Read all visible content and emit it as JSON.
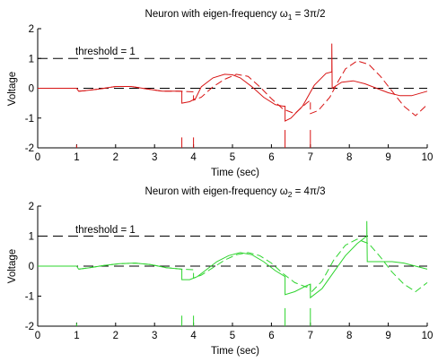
{
  "chart_data": [
    {
      "type": "line",
      "title_prefix": "Neuron with eigen-frequency ω",
      "title_sub": "1",
      "title_suffix": " = 3π/2",
      "xlabel": "Time (sec)",
      "ylabel": "Voltage",
      "xlim": [
        0,
        10
      ],
      "ylim": [
        -2,
        2
      ],
      "xticks": [
        "0",
        "1",
        "2",
        "3",
        "4",
        "5",
        "6",
        "7",
        "8",
        "9",
        "10"
      ],
      "yticks": [
        "-2",
        "-1",
        "0",
        "1",
        "2"
      ],
      "annotation": "threshold = 1",
      "reference_lines": [
        {
          "name": "threshold",
          "y": 1,
          "style": "dashed",
          "color": "#000000"
        },
        {
          "name": "zero",
          "y": 0,
          "style": "dashed",
          "color": "#000000"
        }
      ],
      "color": "#d81414",
      "series": [
        {
          "style": "solid",
          "x": [
            0,
            0.5,
            1.0,
            1.05,
            1.2,
            1.6,
            2.0,
            2.4,
            2.8,
            3.2,
            3.6,
            3.7,
            3.7,
            3.9,
            4.05,
            4.2,
            4.5,
            4.8,
            5.0,
            5.2,
            5.5,
            5.8,
            6.1,
            6.3,
            6.35,
            6.35,
            6.5,
            6.8,
            7.1,
            7.4,
            7.55,
            7.55,
            7.56,
            7.8,
            8.1,
            8.4,
            8.7,
            9.0,
            9.3,
            9.6,
            10.0
          ],
          "y": [
            0,
            0,
            0,
            -0.1,
            -0.08,
            -0.02,
            0.06,
            0.06,
            -0.02,
            -0.1,
            -0.1,
            -0.1,
            -0.5,
            -0.45,
            -0.35,
            0.05,
            0.35,
            0.47,
            0.45,
            0.35,
            0.05,
            -0.3,
            -0.55,
            -0.6,
            -0.6,
            -1.1,
            -1.0,
            -0.6,
            0.1,
            0.5,
            0.55,
            1.5,
            0.0,
            0.2,
            0.25,
            0.15,
            0.0,
            -0.15,
            -0.25,
            -0.25,
            -0.1
          ]
        },
        {
          "style": "dashed",
          "x": [
            0,
            0.5,
            1.0,
            1.05,
            1.2,
            1.6,
            2.0,
            2.4,
            2.8,
            3.2,
            3.6,
            4.0,
            4.0,
            4.2,
            4.5,
            4.8,
            5.1,
            5.4,
            5.7,
            6.0,
            6.3,
            6.6,
            6.9,
            7.0,
            7.0,
            7.2,
            7.5,
            7.7,
            7.9,
            8.2,
            8.5,
            8.8,
            9.1,
            9.4,
            9.7,
            10.0
          ],
          "y": [
            0,
            0,
            0,
            -0.1,
            -0.08,
            -0.02,
            0.06,
            0.06,
            -0.02,
            -0.1,
            -0.1,
            -0.12,
            -0.4,
            -0.3,
            0.05,
            0.3,
            0.47,
            0.4,
            0.05,
            -0.35,
            -0.7,
            -0.85,
            -0.5,
            -0.4,
            -0.85,
            -0.75,
            -0.3,
            0.2,
            0.65,
            0.92,
            0.8,
            0.4,
            -0.1,
            -0.6,
            -0.92,
            -0.55
          ]
        }
      ],
      "spikes": [
        {
          "x": 1.0,
          "height": 0.1
        },
        {
          "x": 3.7,
          "height": 0.35
        },
        {
          "x": 4.0,
          "height": 0.35
        },
        {
          "x": 6.35,
          "height": 0.6
        },
        {
          "x": 7.0,
          "height": 0.6
        }
      ]
    },
    {
      "type": "line",
      "title_prefix": "Neuron with eigen-frequency ω",
      "title_sub": "2",
      "title_suffix": " = 4π/3",
      "xlabel": "Time (sec)",
      "ylabel": "Voltage",
      "xlim": [
        0,
        10
      ],
      "ylim": [
        -2,
        2
      ],
      "xticks": [
        "0",
        "1",
        "2",
        "3",
        "4",
        "5",
        "6",
        "7",
        "8",
        "9",
        "10"
      ],
      "yticks": [
        "-2",
        "-1",
        "0",
        "1",
        "2"
      ],
      "annotation": "threshold = 1",
      "reference_lines": [
        {
          "name": "threshold",
          "y": 1,
          "style": "dashed",
          "color": "#000000"
        },
        {
          "name": "zero",
          "y": 0,
          "style": "dashed",
          "color": "#000000"
        }
      ],
      "color": "#2ed42e",
      "series": [
        {
          "style": "solid",
          "x": [
            0,
            0.5,
            1.0,
            1.05,
            1.3,
            1.7,
            2.1,
            2.5,
            2.9,
            3.3,
            3.7,
            3.7,
            3.9,
            4.1,
            4.3,
            4.6,
            4.9,
            5.2,
            5.5,
            5.8,
            6.1,
            6.35,
            6.35,
            6.6,
            6.9,
            7.0,
            7.0,
            7.3,
            7.6,
            7.9,
            8.2,
            8.45,
            8.45,
            8.46,
            8.8,
            9.1,
            9.4,
            9.7,
            10.0
          ],
          "y": [
            0,
            0,
            0,
            -0.1,
            -0.06,
            0.02,
            0.08,
            0.1,
            0.05,
            -0.05,
            -0.1,
            -0.45,
            -0.45,
            -0.35,
            -0.15,
            0.15,
            0.35,
            0.45,
            0.38,
            0.15,
            -0.15,
            -0.35,
            -0.95,
            -0.85,
            -0.65,
            -0.6,
            -1.05,
            -0.75,
            -0.2,
            0.35,
            0.75,
            1.0,
            1.5,
            0.15,
            0.15,
            0.15,
            0.1,
            0.0,
            -0.1
          ]
        },
        {
          "style": "dashed",
          "x": [
            0,
            0.5,
            1.0,
            1.05,
            1.3,
            1.7,
            2.1,
            2.5,
            2.9,
            3.3,
            3.7,
            4.0,
            4.0,
            4.2,
            4.5,
            4.8,
            5.1,
            5.4,
            5.7,
            6.0,
            6.3,
            6.6,
            6.9,
            7.0,
            7.0,
            7.3,
            7.6,
            7.9,
            8.2,
            8.5,
            8.8,
            9.1,
            9.4,
            9.7,
            10.0
          ],
          "y": [
            0,
            0,
            0,
            -0.1,
            -0.06,
            0.02,
            0.08,
            0.1,
            0.05,
            -0.05,
            -0.1,
            -0.12,
            -0.4,
            -0.3,
            -0.05,
            0.2,
            0.38,
            0.45,
            0.35,
            0.1,
            -0.25,
            -0.55,
            -0.7,
            -0.6,
            -0.9,
            -0.5,
            0.2,
            0.7,
            0.9,
            0.75,
            0.3,
            -0.2,
            -0.6,
            -0.85,
            -0.55
          ]
        }
      ],
      "spikes": [
        {
          "x": 1.0,
          "height": 0.1
        },
        {
          "x": 3.7,
          "height": 0.35
        },
        {
          "x": 4.0,
          "height": 0.35
        },
        {
          "x": 6.35,
          "height": 0.6
        },
        {
          "x": 7.0,
          "height": 0.6
        }
      ]
    }
  ]
}
